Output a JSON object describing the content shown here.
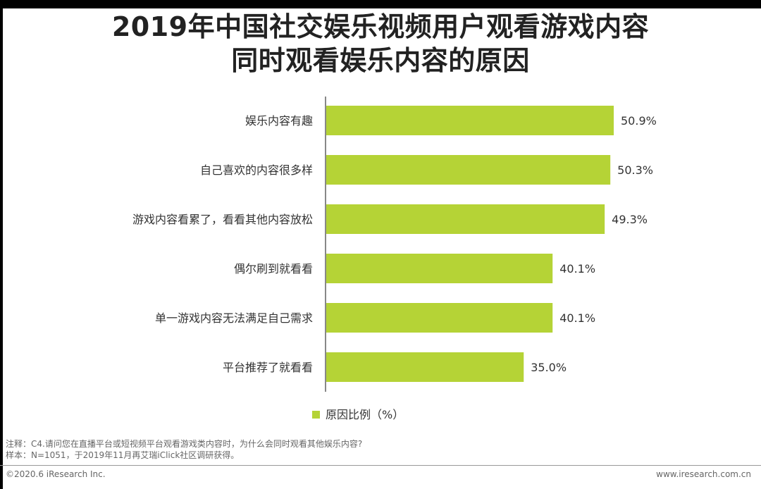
{
  "title": [
    "2019年中国社交娱乐视频用户观看游戏内容",
    "同时观看娱乐内容的原因"
  ],
  "chart_data": {
    "type": "bar",
    "orientation": "horizontal",
    "categories": [
      "娱乐内容有趣",
      "自己喜欢的内容很多样",
      "游戏内容看累了，看看其他内容放松",
      "偶尔刷到就看看",
      "单一游戏内容无法满足自己需求",
      "平台推荐了就看看"
    ],
    "series": [
      {
        "name": "原因比例（%）",
        "values": [
          50.9,
          50.3,
          49.3,
          40.1,
          40.1,
          35.0
        ],
        "labels": [
          "50.9%",
          "50.3%",
          "49.3%",
          "40.1%",
          "40.1%",
          "35.0%"
        ],
        "color": "#B5D336"
      }
    ],
    "xlim": [
      0,
      60
    ],
    "grid": false,
    "legend_position": "bottom-center"
  },
  "notes": {
    "note": "注释：C4.请问您在直播平台或短视频平台观看游戏类内容时，为什么会同时观看其他娱乐内容?",
    "sample": "样本：N=1051，于2019年11月再艾瑞iClick社区调研获得。"
  },
  "footer": {
    "copyright": "©2020.6 iResearch Inc.",
    "website": "www.iresearch.com.cn"
  }
}
